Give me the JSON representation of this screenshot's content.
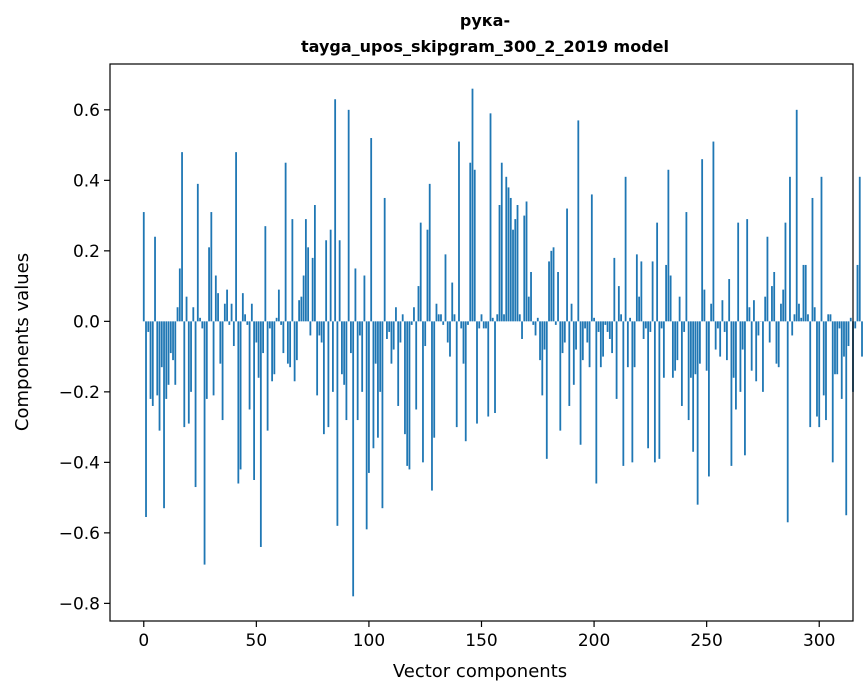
{
  "chart_data": {
    "type": "bar",
    "title_line1": "рука-",
    "title_line2": "tayga_upos_skipgram_300_2_2019 model",
    "xlabel": "Vector components",
    "ylabel": "Components values",
    "xlim": [
      -15,
      315
    ],
    "ylim": [
      -0.85,
      0.73
    ],
    "xticks": [
      0,
      50,
      100,
      150,
      200,
      250,
      300
    ],
    "xtick_labels": [
      "0",
      "50",
      "100",
      "150",
      "200",
      "250",
      "300"
    ],
    "yticks": [
      -0.8,
      -0.6,
      -0.4,
      -0.2,
      0.0,
      0.2,
      0.4,
      0.6
    ],
    "ytick_labels": [
      "−0.8",
      "−0.6",
      "−0.4",
      "−0.2",
      "0.0",
      "0.2",
      "0.4",
      "0.6"
    ],
    "bar_color": "#1f77b4",
    "grid": false,
    "values": [
      0.31,
      -0.555,
      -0.03,
      -0.22,
      -0.24,
      0.24,
      -0.21,
      -0.31,
      -0.13,
      -0.53,
      -0.22,
      -0.18,
      -0.09,
      -0.11,
      -0.18,
      0.04,
      0.15,
      0.48,
      -0.3,
      0.07,
      -0.29,
      -0.2,
      0.04,
      -0.47,
      0.39,
      0.01,
      -0.02,
      -0.69,
      -0.22,
      0.21,
      0.31,
      -0.21,
      0.13,
      0.08,
      -0.12,
      -0.28,
      0.05,
      0.09,
      -0.01,
      0.05,
      -0.07,
      0.48,
      -0.46,
      -0.42,
      0.08,
      0.02,
      -0.01,
      -0.25,
      0.05,
      -0.45,
      -0.06,
      -0.16,
      -0.64,
      -0.09,
      0.27,
      -0.31,
      -0.02,
      -0.17,
      -0.15,
      0.01,
      0.09,
      -0.01,
      -0.09,
      0.45,
      -0.12,
      -0.13,
      0.29,
      -0.17,
      -0.11,
      0.06,
      0.07,
      0.13,
      0.29,
      0.21,
      -0.04,
      0.18,
      0.33,
      -0.21,
      -0.04,
      -0.06,
      -0.32,
      0.23,
      -0.3,
      0.26,
      -0.2,
      0.63,
      -0.58,
      0.23,
      -0.15,
      -0.18,
      -0.28,
      0.6,
      -0.09,
      -0.78,
      0.15,
      -0.28,
      -0.04,
      -0.2,
      0.13,
      -0.59,
      -0.43,
      0.52,
      -0.36,
      -0.12,
      -0.33,
      -0.2,
      -0.53,
      0.35,
      -0.05,
      -0.03,
      -0.12,
      -0.08,
      0.04,
      -0.24,
      -0.06,
      0.02,
      -0.32,
      -0.41,
      -0.42,
      -0.01,
      0.04,
      -0.25,
      0.1,
      0.28,
      -0.4,
      -0.07,
      0.26,
      0.39,
      -0.48,
      -0.33,
      0.05,
      0.02,
      0.02,
      -0.01,
      0.19,
      -0.06,
      -0.1,
      0.11,
      0.02,
      -0.3,
      0.51,
      -0.02,
      -0.12,
      -0.34,
      -0.01,
      0.45,
      0.66,
      0.43,
      -0.29,
      -0.02,
      0.02,
      -0.02,
      -0.02,
      -0.27,
      0.59,
      0.01,
      -0.26,
      0.02,
      0.33,
      0.45,
      0.02,
      0.41,
      0.38,
      0.35,
      0.26,
      0.29,
      0.33,
      0.02,
      -0.05,
      0.3,
      0.34,
      0.07,
      0.14,
      -0.01,
      -0.04,
      0.01,
      -0.11,
      -0.21,
      -0.08,
      -0.39,
      0.17,
      0.2,
      0.21,
      -0.01,
      0.14,
      -0.31,
      -0.09,
      -0.06,
      0.32,
      -0.24,
      0.05,
      -0.18,
      -0.08,
      0.57,
      -0.35,
      -0.11,
      -0.02,
      -0.06,
      -0.13,
      0.36,
      0.01,
      -0.46,
      -0.03,
      -0.13,
      -0.1,
      -0.01,
      -0.03,
      -0.05,
      -0.09,
      0.18,
      -0.22,
      0.1,
      0.02,
      -0.41,
      0.41,
      -0.13,
      0.01,
      -0.4,
      -0.13,
      0.19,
      0.07,
      0.17,
      -0.05,
      -0.02,
      -0.36,
      -0.03,
      0.17,
      -0.4,
      0.28,
      -0.39,
      -0.02,
      -0.16,
      0.16,
      0.43,
      0.13,
      -0.16,
      -0.14,
      -0.11,
      0.07,
      -0.24,
      -0.03,
      0.31,
      -0.28,
      -0.16,
      -0.37,
      -0.15,
      -0.52,
      -0.12,
      0.46,
      0.09,
      -0.14,
      -0.44,
      0.05,
      0.51,
      -0.08,
      -0.02,
      -0.1,
      0.06,
      -0.03,
      -0.11,
      0.12,
      -0.41,
      -0.16,
      -0.25,
      0.28,
      -0.2,
      -0.08,
      -0.38,
      0.29,
      0.04,
      -0.14,
      0.06,
      -0.17,
      -0.04,
      0.0,
      -0.2,
      0.07,
      0.24,
      -0.06,
      0.1,
      0.14,
      -0.12,
      -0.13,
      0.05,
      0.09,
      0.28,
      -0.57,
      0.41,
      -0.04,
      0.02,
      0.6,
      0.05,
      0.01,
      0.16,
      0.16,
      0.02,
      -0.3,
      0.35,
      0.04,
      -0.27,
      -0.3,
      0.41,
      -0.21,
      -0.28,
      0.02,
      0.02,
      -0.4,
      -0.15,
      -0.15,
      -0.02,
      -0.22,
      -0.1,
      -0.55,
      -0.07,
      0.01,
      -0.2,
      -0.02,
      0.16,
      0.41,
      -0.1
    ]
  }
}
